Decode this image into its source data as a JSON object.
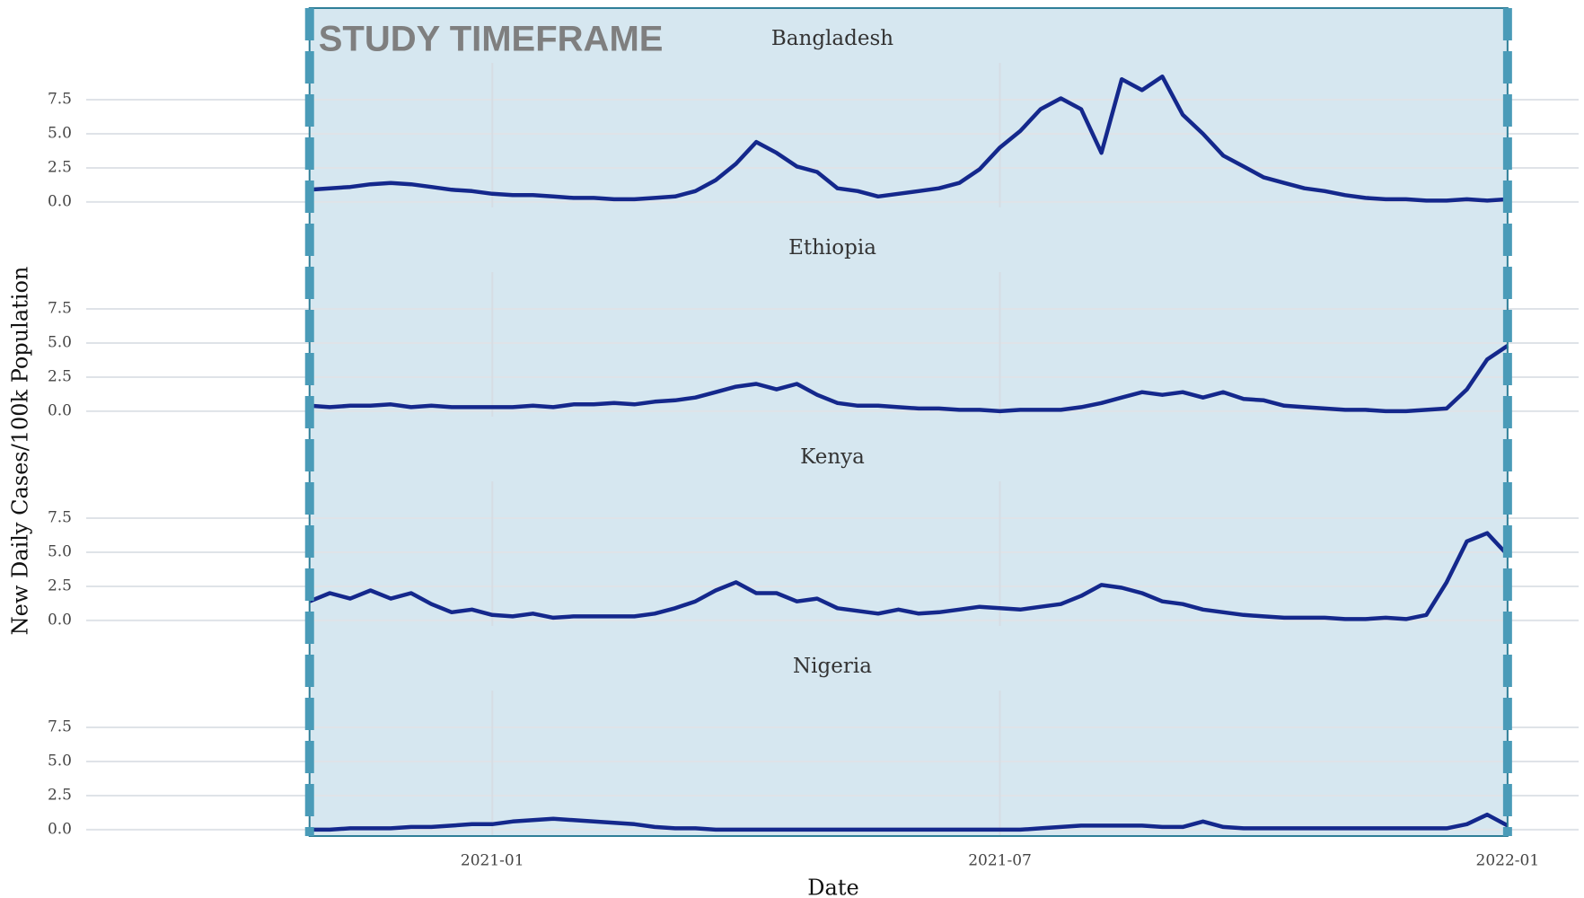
{
  "axes": {
    "xlabel": "Date",
    "ylabel": "New Daily Cases/100k Population"
  },
  "study_timeframe": {
    "label": "STUDY TIMEFRAME",
    "xlim": [
      2020.82,
      2022.0
    ]
  },
  "chart_data": [
    {
      "type": "line",
      "title": "Bangladesh",
      "color": "#14288c",
      "grid": true,
      "xlim": [
        2020.6,
        2022.07
      ],
      "xticks": [
        {
          "value": 2021.0,
          "label": "2021-01"
        },
        {
          "value": 2021.5,
          "label": "2021-07"
        },
        {
          "value": 2022.0,
          "label": "2022-01"
        }
      ],
      "ylim": [
        -0.4,
        10.2
      ],
      "yticks": [
        {
          "value": 0,
          "label": "0.0"
        },
        2.5,
        {
          "value": 5,
          "label": "5.0"
        },
        7.5
      ],
      "x": [
        2020.82,
        2020.84,
        2020.86,
        2020.88,
        2020.9,
        2020.92,
        2020.94,
        2020.96,
        2020.98,
        2021,
        2021.02,
        2021.04,
        2021.06,
        2021.08,
        2021.1,
        2021.12,
        2021.14,
        2021.16,
        2021.18,
        2021.2,
        2021.22,
        2021.24,
        2021.26,
        2021.28,
        2021.3,
        2021.32,
        2021.34,
        2021.36,
        2021.38,
        2021.4,
        2021.42,
        2021.44,
        2021.46,
        2021.48,
        2021.5,
        2021.52,
        2021.54,
        2021.56,
        2021.58,
        2021.6,
        2021.62,
        2021.64,
        2021.66,
        2021.68,
        2021.7,
        2021.72,
        2021.74,
        2021.76,
        2021.78,
        2021.8,
        2021.82,
        2021.84,
        2021.86,
        2021.88,
        2021.9,
        2021.92,
        2021.94,
        2021.96,
        2021.98,
        2022
      ],
      "values": [
        0.9,
        1.0,
        1.1,
        1.3,
        1.4,
        1.3,
        1.1,
        0.9,
        0.8,
        0.6,
        0.5,
        0.5,
        0.4,
        0.3,
        0.3,
        0.2,
        0.2,
        0.3,
        0.4,
        0.8,
        1.6,
        2.8,
        4.4,
        3.6,
        2.6,
        2.2,
        1.0,
        0.8,
        0.4,
        0.6,
        0.8,
        1.0,
        1.4,
        2.4,
        4.0,
        5.2,
        6.8,
        7.6,
        6.8,
        3.6,
        9.0,
        8.2,
        9.2,
        6.4,
        5.0,
        3.4,
        2.6,
        1.8,
        1.4,
        1.0,
        0.8,
        0.5,
        0.3,
        0.2,
        0.2,
        0.1,
        0.1,
        0.2,
        0.1,
        0.2
      ]
    },
    {
      "type": "line",
      "title": "Ethiopia",
      "color": "#14288c",
      "grid": true,
      "xlim": [
        2020.6,
        2022.07
      ],
      "xticks": [
        {
          "value": 2021.0,
          "label": "2021-01"
        },
        {
          "value": 2021.5,
          "label": "2021-07"
        },
        {
          "value": 2022.0,
          "label": "2022-01"
        }
      ],
      "ylim": [
        -0.4,
        10.2
      ],
      "yticks": [
        {
          "value": 0,
          "label": "0.0"
        },
        2.5,
        {
          "value": 5,
          "label": "5.0"
        },
        7.5
      ],
      "x": [
        2020.82,
        2020.84,
        2020.86,
        2020.88,
        2020.9,
        2020.92,
        2020.94,
        2020.96,
        2020.98,
        2021,
        2021.02,
        2021.04,
        2021.06,
        2021.08,
        2021.1,
        2021.12,
        2021.14,
        2021.16,
        2021.18,
        2021.2,
        2021.22,
        2021.24,
        2021.26,
        2021.28,
        2021.3,
        2021.32,
        2021.34,
        2021.36,
        2021.38,
        2021.4,
        2021.42,
        2021.44,
        2021.46,
        2021.48,
        2021.5,
        2021.52,
        2021.54,
        2021.56,
        2021.58,
        2021.6,
        2021.62,
        2021.64,
        2021.66,
        2021.68,
        2021.7,
        2021.72,
        2021.74,
        2021.76,
        2021.78,
        2021.8,
        2021.82,
        2021.84,
        2021.86,
        2021.88,
        2021.9,
        2021.92,
        2021.94,
        2021.96,
        2021.98,
        2022
      ],
      "values": [
        0.4,
        0.3,
        0.4,
        0.4,
        0.5,
        0.3,
        0.4,
        0.3,
        0.3,
        0.3,
        0.3,
        0.4,
        0.3,
        0.5,
        0.5,
        0.6,
        0.5,
        0.7,
        0.8,
        1.0,
        1.4,
        1.8,
        2.0,
        1.6,
        2.0,
        1.2,
        0.6,
        0.4,
        0.4,
        0.3,
        0.2,
        0.2,
        0.1,
        0.1,
        0.0,
        0.1,
        0.1,
        0.1,
        0.3,
        0.6,
        1.0,
        1.4,
        1.2,
        1.4,
        1.0,
        1.4,
        0.9,
        0.8,
        0.4,
        0.3,
        0.2,
        0.1,
        0.1,
        0.0,
        0.0,
        0.1,
        0.2,
        1.6,
        3.8,
        4.8
      ]
    },
    {
      "type": "line",
      "title": "Kenya",
      "color": "#14288c",
      "grid": true,
      "xlim": [
        2020.6,
        2022.07
      ],
      "xticks": [
        {
          "value": 2021.0,
          "label": "2021-01"
        },
        {
          "value": 2021.5,
          "label": "2021-07"
        },
        {
          "value": 2022.0,
          "label": "2022-01"
        }
      ],
      "ylim": [
        -0.4,
        10.2
      ],
      "yticks": [
        {
          "value": 0,
          "label": "0.0"
        },
        2.5,
        {
          "value": 5,
          "label": "5.0"
        },
        7.5
      ],
      "x": [
        2020.82,
        2020.84,
        2020.86,
        2020.88,
        2020.9,
        2020.92,
        2020.94,
        2020.96,
        2020.98,
        2021,
        2021.02,
        2021.04,
        2021.06,
        2021.08,
        2021.1,
        2021.12,
        2021.14,
        2021.16,
        2021.18,
        2021.2,
        2021.22,
        2021.24,
        2021.26,
        2021.28,
        2021.3,
        2021.32,
        2021.34,
        2021.36,
        2021.38,
        2021.4,
        2021.42,
        2021.44,
        2021.46,
        2021.48,
        2021.5,
        2021.52,
        2021.54,
        2021.56,
        2021.58,
        2021.6,
        2021.62,
        2021.64,
        2021.66,
        2021.68,
        2021.7,
        2021.72,
        2021.74,
        2021.76,
        2021.78,
        2021.8,
        2021.82,
        2021.84,
        2021.86,
        2021.88,
        2021.9,
        2021.92,
        2021.94,
        2021.96,
        2021.98,
        2022
      ],
      "values": [
        1.4,
        2.0,
        1.6,
        2.2,
        1.6,
        2.0,
        1.2,
        0.6,
        0.8,
        0.4,
        0.3,
        0.5,
        0.2,
        0.3,
        0.3,
        0.3,
        0.3,
        0.5,
        0.9,
        1.4,
        2.2,
        2.8,
        2.0,
        2.0,
        1.4,
        1.6,
        0.9,
        0.7,
        0.5,
        0.8,
        0.5,
        0.6,
        0.8,
        1.0,
        0.9,
        0.8,
        1.0,
        1.2,
        1.8,
        2.6,
        2.4,
        2.0,
        1.4,
        1.2,
        0.8,
        0.6,
        0.4,
        0.3,
        0.2,
        0.2,
        0.2,
        0.1,
        0.1,
        0.2,
        0.1,
        0.4,
        2.8,
        5.8,
        6.4,
        4.8
      ]
    },
    {
      "type": "line",
      "title": "Nigeria",
      "color": "#14288c",
      "grid": true,
      "xlim": [
        2020.6,
        2022.07
      ],
      "xticks": [
        {
          "value": 2021.0,
          "label": "2021-01"
        },
        {
          "value": 2021.5,
          "label": "2021-07"
        },
        {
          "value": 2022.0,
          "label": "2022-01"
        }
      ],
      "ylim": [
        -0.4,
        10.2
      ],
      "yticks": [
        {
          "value": 0,
          "label": "0.0"
        },
        2.5,
        {
          "value": 5,
          "label": "5.0"
        },
        7.5
      ],
      "x": [
        2020.82,
        2020.84,
        2020.86,
        2020.88,
        2020.9,
        2020.92,
        2020.94,
        2020.96,
        2020.98,
        2021,
        2021.02,
        2021.04,
        2021.06,
        2021.08,
        2021.1,
        2021.12,
        2021.14,
        2021.16,
        2021.18,
        2021.2,
        2021.22,
        2021.24,
        2021.26,
        2021.28,
        2021.3,
        2021.32,
        2021.34,
        2021.36,
        2021.38,
        2021.4,
        2021.42,
        2021.44,
        2021.46,
        2021.48,
        2021.5,
        2021.52,
        2021.54,
        2021.56,
        2021.58,
        2021.6,
        2021.62,
        2021.64,
        2021.66,
        2021.68,
        2021.7,
        2021.72,
        2021.74,
        2021.76,
        2021.78,
        2021.8,
        2021.82,
        2021.84,
        2021.86,
        2021.88,
        2021.9,
        2021.92,
        2021.94,
        2021.96,
        2021.98,
        2022
      ],
      "values": [
        0.0,
        0.0,
        0.1,
        0.1,
        0.1,
        0.2,
        0.2,
        0.3,
        0.4,
        0.4,
        0.6,
        0.7,
        0.8,
        0.7,
        0.6,
        0.5,
        0.4,
        0.2,
        0.1,
        0.1,
        0.0,
        0.0,
        0.0,
        0.0,
        0.0,
        0.0,
        0.0,
        0.0,
        0.0,
        0.0,
        0.0,
        0.0,
        0.0,
        0.0,
        0.0,
        0.0,
        0.1,
        0.2,
        0.3,
        0.3,
        0.3,
        0.3,
        0.2,
        0.2,
        0.6,
        0.2,
        0.1,
        0.1,
        0.1,
        0.1,
        0.1,
        0.1,
        0.1,
        0.1,
        0.1,
        0.1,
        0.1,
        0.4,
        1.1,
        0.3
      ]
    }
  ]
}
